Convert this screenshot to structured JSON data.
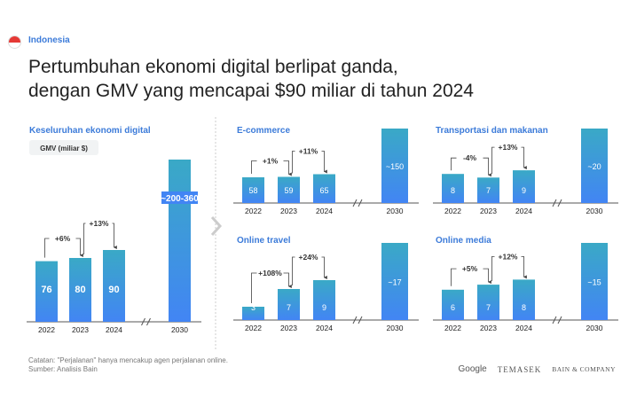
{
  "header": {
    "country": "Indonesia",
    "title_line1": "Pertumbuhan ekonomi digital berlipat ganda,",
    "title_line2": "dengan GMV yang mencapai $90 miliar di tahun 2024"
  },
  "footer": {
    "note": "Catatan: \"Perjalanan\" hanya mencakup agen perjalanan online.",
    "source": "Sumber: Analisis Bain"
  },
  "logos": {
    "google": "Google",
    "temasek": "TEMASEK",
    "bain": "BAIN & COMPANY"
  },
  "colors": {
    "bar_bottom": "#4285f4",
    "bar_top": "#3aa9c6",
    "title_blue": "#3c7bd9"
  },
  "chart_data": [
    {
      "type": "bar",
      "title": "Keseluruhan ekonomi digital",
      "unit_label": "GMV (miliar $)",
      "categories": [
        "2022",
        "2023",
        "2024",
        "2030"
      ],
      "values": [
        76,
        80,
        90,
        null
      ],
      "value_labels": [
        "76",
        "80",
        "90",
        "~200-360"
      ],
      "growth": [
        "+6%",
        "+13%"
      ]
    },
    {
      "type": "bar",
      "title": "E-commerce",
      "categories": [
        "2022",
        "2023",
        "2024",
        "2030"
      ],
      "values": [
        58,
        59,
        65,
        150
      ],
      "value_labels": [
        "58",
        "59",
        "65",
        "~150"
      ],
      "growth": [
        "+1%",
        "+11%"
      ]
    },
    {
      "type": "bar",
      "title": "Transportasi dan makanan",
      "categories": [
        "2022",
        "2023",
        "2024",
        "2030"
      ],
      "values": [
        8,
        7,
        9,
        20
      ],
      "value_labels": [
        "8",
        "7",
        "9",
        "~20"
      ],
      "growth": [
        "-4%",
        "+13%"
      ]
    },
    {
      "type": "bar",
      "title": "Online travel",
      "categories": [
        "2022",
        "2023",
        "2024",
        "2030"
      ],
      "values": [
        3,
        7,
        9,
        17
      ],
      "value_labels": [
        "3",
        "7",
        "9",
        "~17"
      ],
      "growth": [
        "+108%",
        "+24%"
      ]
    },
    {
      "type": "bar",
      "title": "Online media",
      "categories": [
        "2022",
        "2023",
        "2024",
        "2030"
      ],
      "values": [
        6,
        7,
        8,
        15
      ],
      "value_labels": [
        "6",
        "7",
        "8",
        "~15"
      ],
      "growth": [
        "+5%",
        "+12%"
      ]
    }
  ]
}
